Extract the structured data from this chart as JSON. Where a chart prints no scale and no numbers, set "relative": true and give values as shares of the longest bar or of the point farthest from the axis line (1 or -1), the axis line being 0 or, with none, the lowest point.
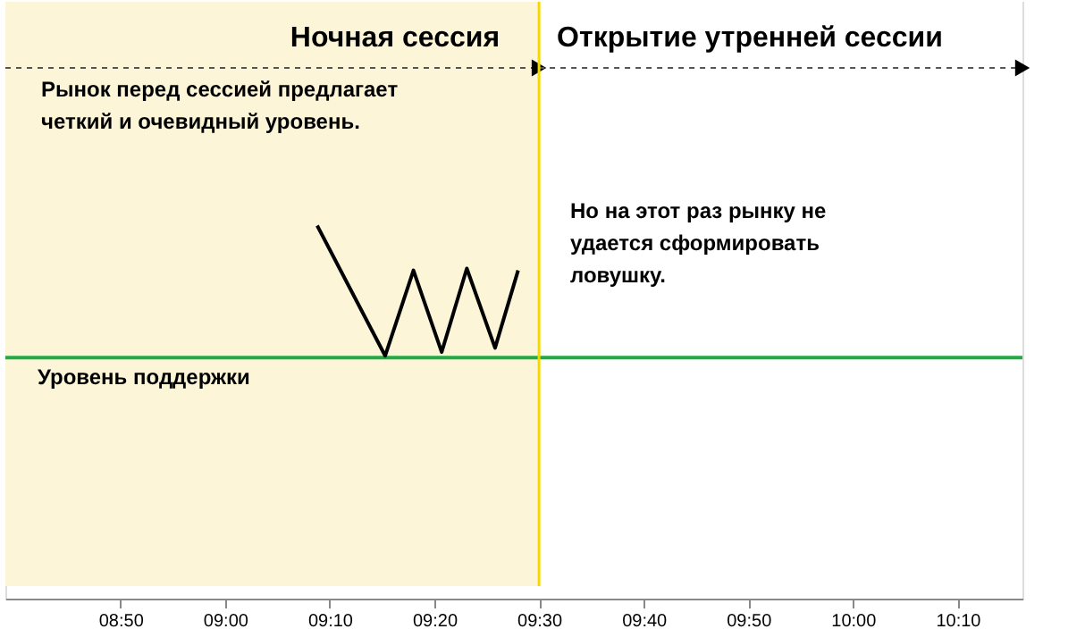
{
  "chart_data": {
    "type": "line",
    "relative": true,
    "x": [
      9.1467,
      9.255,
      9.3,
      9.345,
      9.385,
      9.43,
      9.4667
    ],
    "series": [
      {
        "color": "#000000",
        "values": [
          1,
          0.651,
          0.88,
          0.661,
          0.885,
          0.672,
          0.88
        ]
      }
    ],
    "xlim": [
      8.65,
      10.27
    ],
    "xticks": [
      {
        "value": 8.8333,
        "label": "08:50"
      },
      {
        "value": 9.0,
        "label": "09:00"
      },
      {
        "value": 9.1667,
        "label": "09:10"
      },
      {
        "value": 9.3333,
        "label": "09:20"
      },
      {
        "value": 9.5,
        "label": "09:30"
      },
      {
        "value": 9.6667,
        "label": "09:40"
      },
      {
        "value": 9.8333,
        "label": "09:50"
      },
      {
        "value": 10.0,
        "label": "10:00"
      },
      {
        "value": 10.1667,
        "label": "10:10"
      }
    ],
    "ref_lines": [
      {
        "axis": "y",
        "value": 0.646,
        "label": "Уровень поддержки",
        "color": "#22aa44"
      },
      {
        "axis": "x",
        "value": 9.5,
        "label": null,
        "color": "#f5d800"
      }
    ],
    "bands": [
      {
        "axis": "x",
        "from": 8.65,
        "to": 9.5,
        "label": "Ночная сессия",
        "color": "#fdf5d8"
      },
      {
        "axis": "x",
        "from": 9.5,
        "to": 10.27,
        "label": "Открытие утренней сессии",
        "color": "#ffffff"
      }
    ],
    "annotations": [
      "Рынок перед сессией предлагает четкий и очевидный уровень.",
      "Но на этот раз рынку не удается сформировать ловушку."
    ],
    "grid": false,
    "marker": "none",
    "line_style": "solid"
  }
}
